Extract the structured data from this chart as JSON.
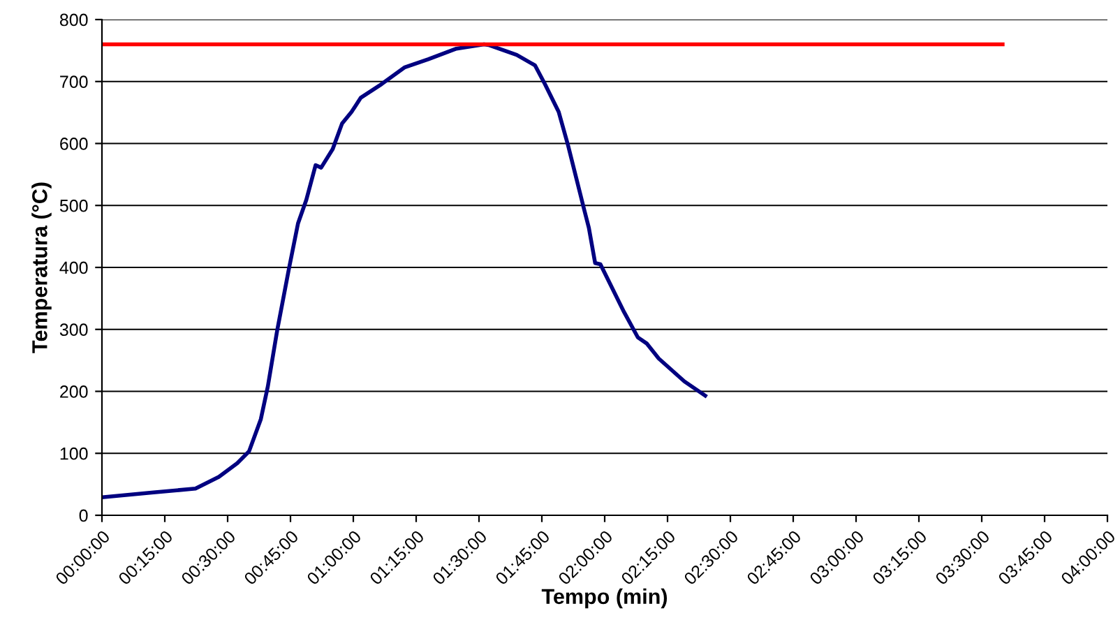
{
  "chart_data": {
    "type": "line",
    "xlabel": "Tempo (min)",
    "ylabel": "Temperatura (°C)",
    "series": [
      {
        "color": "#000080",
        "x": [
          0,
          0.205,
          0.372,
          0.465,
          0.538,
          0.585,
          0.632,
          0.66,
          0.697,
          0.743,
          0.78,
          0.813,
          0.85,
          0.872,
          0.918,
          0.955,
          0.993,
          1.03,
          1.113,
          1.205,
          1.298,
          1.41,
          1.52,
          1.538,
          1.65,
          1.723,
          1.762,
          1.817,
          1.853,
          1.918,
          1.937,
          1.962,
          1.983,
          2.077,
          2.132,
          2.168,
          2.215,
          2.317,
          2.4
        ],
        "values": [
          29,
          37,
          43,
          62,
          84,
          103,
          155,
          208,
          298,
          396,
          471,
          509,
          565,
          561,
          591,
          632,
          651,
          674,
          696,
          723,
          736,
          753,
          760,
          759,
          743,
          726,
          696,
          651,
          599,
          494,
          464,
          407,
          405,
          328,
          287,
          277,
          253,
          216,
          193
        ]
      },
      {
        "color": "#ff0000",
        "x": [
          0,
          3.583
        ],
        "values": [
          760,
          760
        ]
      }
    ],
    "xlim": [
      0,
      4
    ],
    "xticks": [
      {
        "value": 0,
        "label": "00:00:00"
      },
      {
        "value": 0.25,
        "label": "00:15:00"
      },
      {
        "value": 0.5,
        "label": "00:30:00"
      },
      {
        "value": 0.75,
        "label": "00:45:00"
      },
      {
        "value": 1,
        "label": "01:00:00"
      },
      {
        "value": 1.25,
        "label": "01:15:00"
      },
      {
        "value": 1.5,
        "label": "01:30:00"
      },
      {
        "value": 1.75,
        "label": "01:45:00"
      },
      {
        "value": 2,
        "label": "02:00:00"
      },
      {
        "value": 2.25,
        "label": "02:15:00"
      },
      {
        "value": 2.5,
        "label": "02:30:00"
      },
      {
        "value": 2.75,
        "label": "02:45:00"
      },
      {
        "value": 3,
        "label": "03:00:00"
      },
      {
        "value": 3.25,
        "label": "03:15:00"
      },
      {
        "value": 3.5,
        "label": "03:30:00"
      },
      {
        "value": 3.75,
        "label": "03:45:00"
      },
      {
        "value": 4,
        "label": "04:00:00"
      }
    ],
    "ylim": [
      0,
      800
    ],
    "yticks": [
      0,
      100,
      200,
      300,
      400,
      500,
      600,
      700,
      800
    ],
    "grid": "y",
    "legend": false,
    "marker": "none",
    "line_style": "solid"
  }
}
